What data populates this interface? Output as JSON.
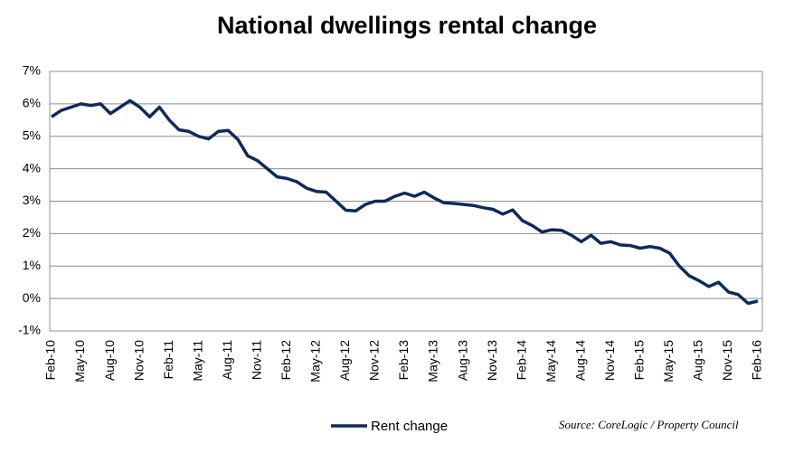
{
  "chart_data": {
    "type": "line",
    "title": "National dwellings rental change",
    "source": "Source: CoreLogic / Property Council",
    "categories": [
      "Feb-10",
      null,
      null,
      "May-10",
      null,
      null,
      "Aug-10",
      null,
      null,
      "Nov-10",
      null,
      null,
      "Feb-11",
      null,
      null,
      "May-11",
      null,
      null,
      "Aug-11",
      null,
      null,
      "Nov-11",
      null,
      null,
      "Feb-12",
      null,
      null,
      "May-12",
      null,
      null,
      "Aug-12",
      null,
      null,
      "Nov-12",
      null,
      null,
      "Feb-13",
      null,
      null,
      "May-13",
      null,
      null,
      "Aug-13",
      null,
      null,
      "Nov-13",
      null,
      null,
      "Feb-14",
      null,
      null,
      "May-14",
      null,
      null,
      "Aug-14",
      null,
      null,
      "Nov-14",
      null,
      null,
      "Feb-15",
      null,
      null,
      "May-15",
      null,
      null,
      "Aug-15",
      null,
      null,
      "Nov-15",
      null,
      null,
      "Feb-16"
    ],
    "series": [
      {
        "name": "Rent change",
        "color": "#0e2a5c",
        "values": [
          5.6,
          5.8,
          5.9,
          6.0,
          5.95,
          6.0,
          5.7,
          5.9,
          6.1,
          5.9,
          5.6,
          5.9,
          5.5,
          5.2,
          5.15,
          5.0,
          4.92,
          5.15,
          5.18,
          4.9,
          4.4,
          4.25,
          4.0,
          3.75,
          3.7,
          3.6,
          3.4,
          3.3,
          3.28,
          3.0,
          2.72,
          2.7,
          2.9,
          3.0,
          3.0,
          3.15,
          3.25,
          3.15,
          3.28,
          3.1,
          2.95,
          2.93,
          2.9,
          2.87,
          2.8,
          2.75,
          2.6,
          2.73,
          2.4,
          2.25,
          2.05,
          2.12,
          2.1,
          1.95,
          1.75,
          1.95,
          1.7,
          1.75,
          1.65,
          1.63,
          1.55,
          1.6,
          1.55,
          1.4,
          1.0,
          0.7,
          0.55,
          0.37,
          0.5,
          0.2,
          0.12,
          -0.15,
          -0.08
        ]
      }
    ],
    "ylim": [
      -1,
      7
    ],
    "yticks": [
      {
        "value": -1,
        "label": "-1%"
      },
      {
        "value": 0,
        "label": "0%"
      },
      {
        "value": 1,
        "label": "1%"
      },
      {
        "value": 2,
        "label": "2%"
      },
      {
        "value": 3,
        "label": "3%"
      },
      {
        "value": 4,
        "label": "4%"
      },
      {
        "value": 5,
        "label": "5%"
      },
      {
        "value": 6,
        "label": "6%"
      },
      {
        "value": 7,
        "label": "7%"
      }
    ],
    "grid": true
  }
}
